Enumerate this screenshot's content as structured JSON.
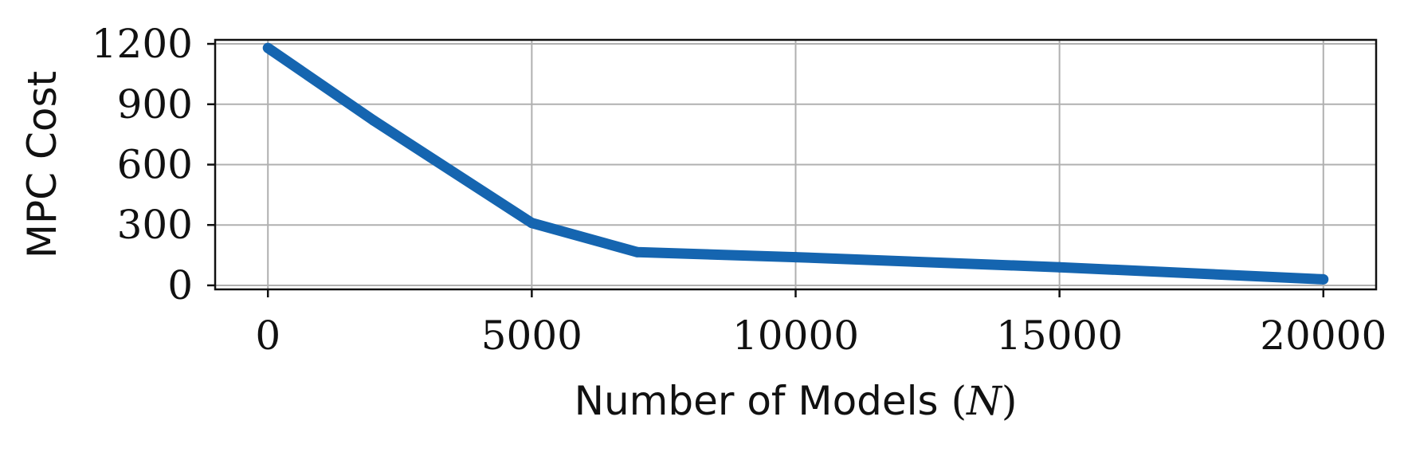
{
  "chart_data": {
    "type": "line",
    "xlabel": "Number of Models",
    "xlabel_symbol": "N",
    "ylabel": "MPC Cost",
    "xlim": [
      -1000,
      21000
    ],
    "ylim": [
      -20,
      1220
    ],
    "grid": true,
    "x_ticks": [
      0,
      5000,
      10000,
      15000,
      20000
    ],
    "y_ticks": [
      0,
      300,
      600,
      900,
      1200
    ],
    "series": [
      {
        "color": "#1565b0",
        "x": [
          0,
          2000,
          5000,
          7000,
          10000,
          15000,
          20000
        ],
        "y": [
          1180,
          820,
          310,
          165,
          140,
          90,
          30
        ]
      }
    ]
  }
}
